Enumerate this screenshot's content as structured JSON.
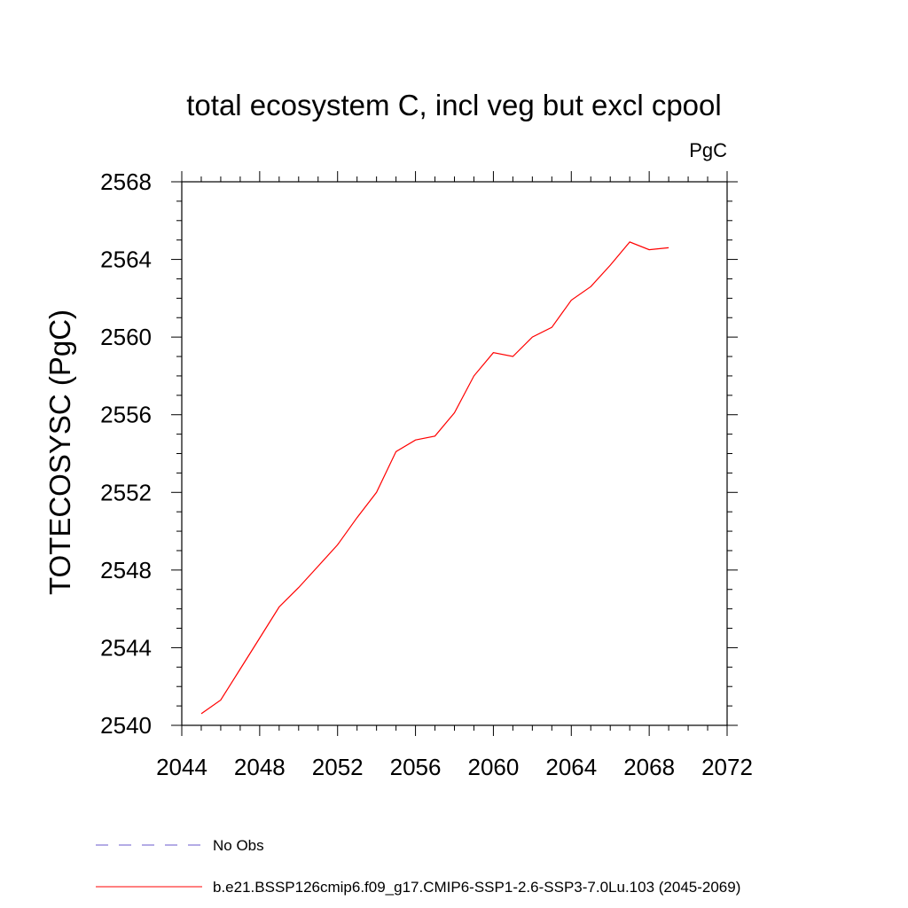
{
  "chart_data": {
    "type": "line",
    "title": "total ecosystem C, incl veg but excl cpool",
    "units_label": "PgC",
    "ylabel": "TOTECOSYSC  (PgC)",
    "xlabel": "",
    "xlim": [
      2044,
      2072
    ],
    "ylim": [
      2540,
      2568
    ],
    "x_ticks": [
      "2044",
      "2048",
      "2052",
      "2056",
      "2060",
      "2064",
      "2068",
      "2072"
    ],
    "y_ticks": [
      "2540",
      "2544",
      "2548",
      "2552",
      "2556",
      "2560",
      "2564",
      "2568"
    ],
    "grid": false,
    "series": [
      {
        "name": "b.e21.BSSP126cmip6.f09_g17.CMIP6-SSP1-2.6-SSP3-7.0Lu.103 (2045-2069)",
        "color": "#ff0000",
        "style": "solid",
        "x": [
          2045,
          2046,
          2047,
          2048,
          2049,
          2050,
          2051,
          2052,
          2053,
          2054,
          2055,
          2056,
          2057,
          2058,
          2059,
          2060,
          2061,
          2062,
          2063,
          2064,
          2065,
          2066,
          2067,
          2068,
          2069
        ],
        "y": [
          2540.6,
          2541.3,
          2542.9,
          2544.5,
          2546.1,
          2547.1,
          2548.2,
          2549.3,
          2550.7,
          2552.0,
          2554.1,
          2554.7,
          2554.9,
          2556.1,
          2558.0,
          2559.2,
          2559.0,
          2560.0,
          2560.5,
          2561.9,
          2562.6,
          2563.7,
          2564.9,
          2564.5,
          2564.6
        ]
      }
    ],
    "legend": [
      {
        "label": "No Obs",
        "color": "#6a5acd",
        "style": "dashed"
      },
      {
        "label": "b.e21.BSSP126cmip6.f09_g17.CMIP6-SSP1-2.6-SSP3-7.0Lu.103 (2045-2069)",
        "color": "#ff0000",
        "style": "solid"
      }
    ],
    "legend_position": "bottom-left"
  }
}
